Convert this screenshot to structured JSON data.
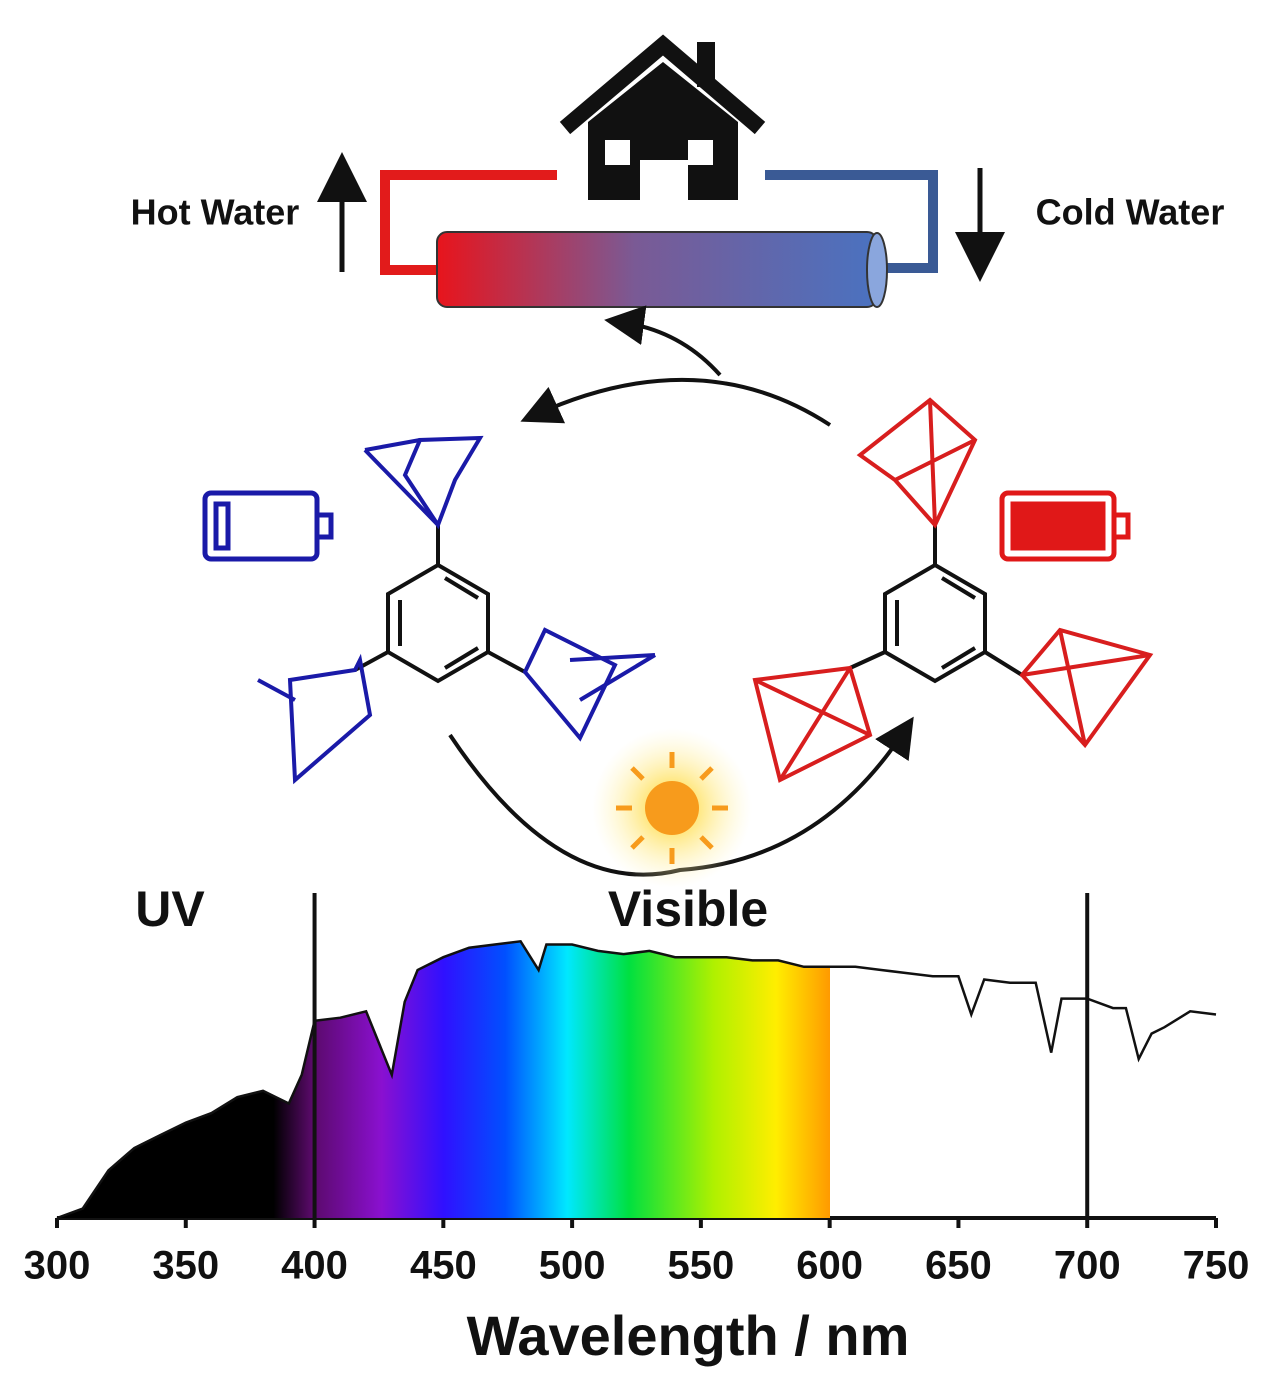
{
  "labels": {
    "hot_water": "Hot Water",
    "cold_water": "Cold Water",
    "uv": "UV",
    "visible": "Visible"
  },
  "chart_data": {
    "type": "area",
    "x_label": "Wavelength / nm",
    "x": [
      300,
      310,
      320,
      330,
      340,
      350,
      360,
      370,
      380,
      390,
      395,
      400,
      410,
      420,
      430,
      435,
      440,
      450,
      460,
      470,
      480,
      487,
      490,
      500,
      510,
      520,
      530,
      540,
      550,
      560,
      570,
      580,
      590,
      600,
      610,
      620,
      630,
      640,
      650,
      655,
      660,
      670,
      680,
      686,
      690,
      700,
      710,
      715,
      720,
      725,
      730,
      740,
      750
    ],
    "values": [
      0,
      0.03,
      0.15,
      0.22,
      0.26,
      0.3,
      0.33,
      0.38,
      0.4,
      0.36,
      0.45,
      0.62,
      0.63,
      0.65,
      0.45,
      0.68,
      0.78,
      0.82,
      0.85,
      0.86,
      0.87,
      0.78,
      0.86,
      0.86,
      0.84,
      0.83,
      0.84,
      0.82,
      0.82,
      0.82,
      0.81,
      0.81,
      0.79,
      0.79,
      0.79,
      0.78,
      0.77,
      0.76,
      0.76,
      0.64,
      0.75,
      0.74,
      0.74,
      0.52,
      0.69,
      0.69,
      0.66,
      0.66,
      0.5,
      0.58,
      0.6,
      0.65,
      0.64
    ],
    "xlim": [
      300,
      750
    ],
    "xticks": [
      300,
      350,
      400,
      450,
      500,
      550,
      600,
      650,
      700,
      750
    ],
    "ylim": [
      0,
      1
    ],
    "markers": [
      400,
      700
    ],
    "color": "#111111"
  }
}
